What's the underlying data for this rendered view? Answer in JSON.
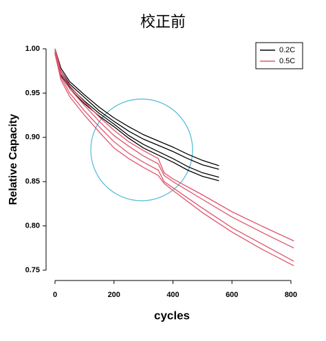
{
  "chart_data": {
    "type": "line",
    "title": "校正前",
    "x_label": "cycles",
    "y_label": "Relative Capacity",
    "xlim": [
      0,
      800
    ],
    "xticks": [
      0,
      200,
      400,
      600,
      800
    ],
    "ylim": [
      0.75,
      1.0
    ],
    "yticks": [
      0.75,
      {
        "value": 0.8,
        "label": "0.80"
      },
      0.85,
      {
        "value": 0.9,
        "label": "0.90"
      },
      0.95,
      {
        "value": 1.0,
        "label": "1.00"
      }
    ],
    "legend": "top-right",
    "series": [
      {
        "name": "0.2C",
        "color": "#000000",
        "x": [
          0,
          20,
          50,
          100,
          150,
          200,
          250,
          300,
          350,
          400,
          450,
          500,
          556
        ],
        "runs": [
          {
            "values": [
              1.0,
              0.978,
              0.963,
              0.948,
              0.934,
              0.922,
              0.912,
              0.903,
              0.896,
              0.889,
              0.881,
              0.874,
              0.868
            ]
          },
          {
            "values": [
              0.998,
              0.975,
              0.96,
              0.945,
              0.93,
              0.918,
              0.907,
              0.898,
              0.891,
              0.884,
              0.876,
              0.869,
              0.864
            ]
          },
          {
            "values": [
              0.996,
              0.972,
              0.957,
              0.941,
              0.927,
              0.915,
              0.902,
              0.892,
              0.884,
              0.876,
              0.867,
              0.86,
              0.855
            ]
          },
          {
            "values": [
              0.995,
              0.97,
              0.955,
              0.938,
              0.924,
              0.912,
              0.899,
              0.888,
              0.88,
              0.872,
              0.863,
              0.856,
              0.851
            ]
          }
        ]
      },
      {
        "name": "0.5C",
        "color": "#df536b",
        "x": [
          0,
          20,
          50,
          100,
          150,
          200,
          250,
          300,
          350,
          370,
          400,
          500,
          600,
          700,
          810
        ],
        "runs": [
          {
            "values": [
              1.0,
              0.975,
              0.958,
              0.94,
              0.923,
              0.908,
              0.895,
              0.885,
              0.876,
              0.86,
              0.853,
              0.835,
              0.816,
              0.8,
              0.783
            ]
          },
          {
            "values": [
              0.998,
              0.972,
              0.955,
              0.936,
              0.918,
              0.902,
              0.89,
              0.879,
              0.87,
              0.857,
              0.85,
              0.83,
              0.81,
              0.793,
              0.775
            ]
          },
          {
            "values": [
              0.996,
              0.968,
              0.95,
              0.93,
              0.912,
              0.895,
              0.882,
              0.872,
              0.863,
              0.85,
              0.843,
              0.82,
              0.798,
              0.78,
              0.76
            ]
          },
          {
            "values": [
              0.994,
              0.965,
              0.946,
              0.925,
              0.906,
              0.888,
              0.876,
              0.866,
              0.857,
              0.848,
              0.84,
              0.815,
              0.793,
              0.774,
              0.755
            ]
          }
        ]
      }
    ]
  }
}
